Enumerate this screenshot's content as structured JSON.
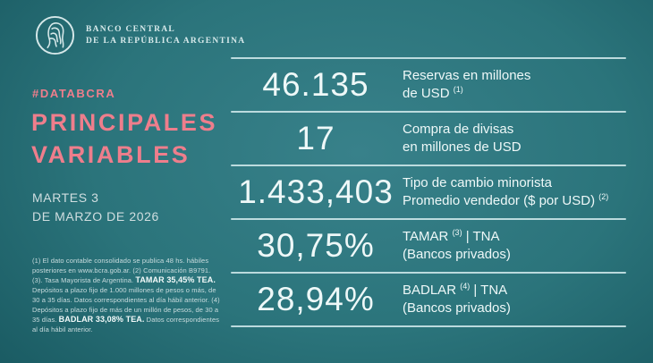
{
  "colors": {
    "accent_pink": "#ee7e8c",
    "bg_center": "#38818a",
    "bg_edge": "#14525a",
    "rule": "#cfe8ea",
    "text_light": "#d6e5e6",
    "value_text": "#eef8f8"
  },
  "brand": {
    "logo": "bcra-emblem",
    "name_line1": "BANCO CENTRAL",
    "name_line2": "DE LA REPÚBLICA ARGENTINA"
  },
  "panel": {
    "hashtag": "#DATABCRA",
    "title_line1": "PRINCIPALES",
    "title_line2": "VARIABLES",
    "date_line1": "MARTES 3",
    "date_line2": "DE MARZO DE 2026",
    "footnote_segments": [
      {
        "text": "(1) El dato contable consolidado se publica 48 hs. hábiles posteriores en www.bcra.gob.ar. (2) Comunicación B9791. (3). Tasa Mayorista de Argentina. ",
        "bold": false
      },
      {
        "text": "TAMAR 35,45% TEA.",
        "bold": true
      },
      {
        "text": " Depósitos a plazo fijo de 1.000 millones de pesos o más, de 30 a 35 días. Datos correspondientes al día hábil anterior. (4) Depósitos a plazo fijo de más de un millón de pesos, de 30 a 35 días. ",
        "bold": false
      },
      {
        "text": "BADLAR 33,08% TEA.",
        "bold": true
      },
      {
        "text": " Datos correspondientes al día hábil anterior.",
        "bold": false
      }
    ]
  },
  "metrics": [
    {
      "value": "46.135",
      "label_lines": [
        [
          {
            "t": "Reservas en millones"
          }
        ],
        [
          {
            "t": "de USD "
          },
          {
            "t": "(1)",
            "sup": true
          }
        ]
      ]
    },
    {
      "value": "17",
      "label_lines": [
        [
          {
            "t": "Compra de divisas"
          }
        ],
        [
          {
            "t": "en millones de USD"
          }
        ]
      ]
    },
    {
      "value": "1.433,403",
      "label_lines": [
        [
          {
            "t": "Tipo de cambio minorista"
          }
        ],
        [
          {
            "t": "Promedio vendedor ($ por USD) "
          },
          {
            "t": "(2)",
            "sup": true
          }
        ]
      ]
    },
    {
      "value": "30,75%",
      "label_lines": [
        [
          {
            "t": "TAMAR "
          },
          {
            "t": "(3)",
            "sup": true
          },
          {
            "t": " | TNA"
          }
        ],
        [
          {
            "t": "(Bancos privados)"
          }
        ]
      ]
    },
    {
      "value": "28,94%",
      "label_lines": [
        [
          {
            "t": "BADLAR "
          },
          {
            "t": "(4)",
            "sup": true
          },
          {
            "t": " | TNA"
          }
        ],
        [
          {
            "t": "(Bancos privados)"
          }
        ]
      ]
    }
  ],
  "chart_data": {
    "type": "table",
    "title": "PRINCIPALES VARIABLES",
    "subtitle": "#DATABCRA",
    "date": "MARTES 3 DE MARZO DE 2026",
    "rows": [
      {
        "display": "46.135",
        "value": 46135,
        "label": "Reservas en millones de USD (1)"
      },
      {
        "display": "17",
        "value": 17,
        "label": "Compra de divisas en millones de USD"
      },
      {
        "display": "1.433,403",
        "value": 1433.403,
        "label": "Tipo de cambio minorista Promedio vendedor ($ por USD) (2)"
      },
      {
        "display": "30,75%",
        "value": 30.75,
        "label": "TAMAR (3) | TNA (Bancos privados)"
      },
      {
        "display": "28,94%",
        "value": 28.94,
        "label": "BADLAR (4) | TNA (Bancos privados)"
      }
    ],
    "notes": {
      "tamar_tea": "TAMAR 35,45% TEA",
      "badlar_tea": "BADLAR 33,08% TEA"
    }
  }
}
